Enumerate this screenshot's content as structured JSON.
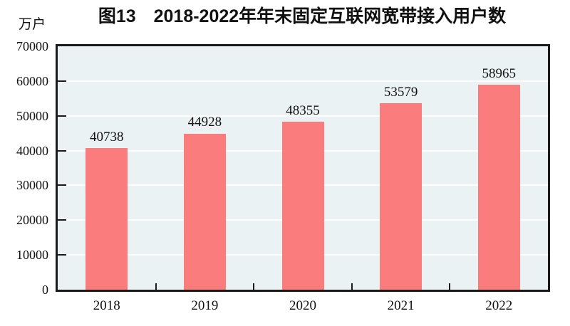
{
  "chart_data": {
    "type": "bar",
    "title": "图13　2018-2022年年末固定互联网宽带接入用户数",
    "unit_label": "万户",
    "categories": [
      "2018",
      "2019",
      "2020",
      "2021",
      "2022"
    ],
    "values": [
      40738,
      44928,
      48355,
      53579,
      58965
    ],
    "ylim": [
      0,
      70000
    ],
    "ytick_step": 10000,
    "yticks": [
      0,
      10000,
      20000,
      30000,
      40000,
      50000,
      60000,
      70000
    ],
    "grid": true,
    "legend": "none",
    "bar_color": "#fa7c7c",
    "plot_bg": "#eaf2f4",
    "gridline_color": "#ffffff",
    "axis_color": "#1a1a1a"
  }
}
